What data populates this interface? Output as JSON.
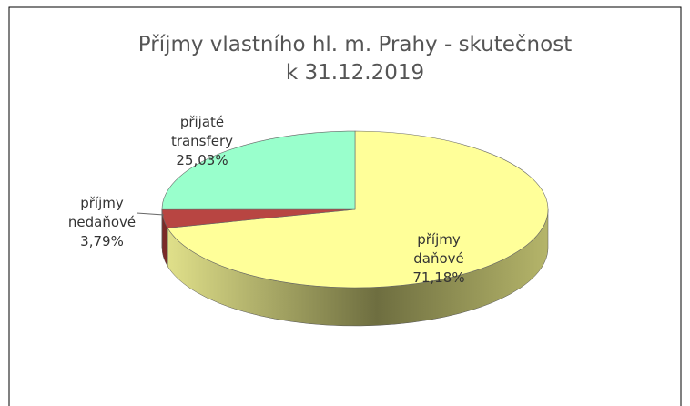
{
  "chart_data": {
    "type": "pie",
    "title": "Příjmy vlastního hl. m. Prahy - skutečnost\nk 31.12.2019",
    "categories": [
      "příjmy daňové",
      "příjmy nedaňové",
      "přijaté transfery"
    ],
    "values": [
      71.18,
      3.79,
      25.03
    ],
    "value_labels": [
      "71,18%",
      "3,79%",
      "25,03%"
    ],
    "colors": [
      "#ffff99",
      "#b84542",
      "#99ffcc"
    ]
  }
}
